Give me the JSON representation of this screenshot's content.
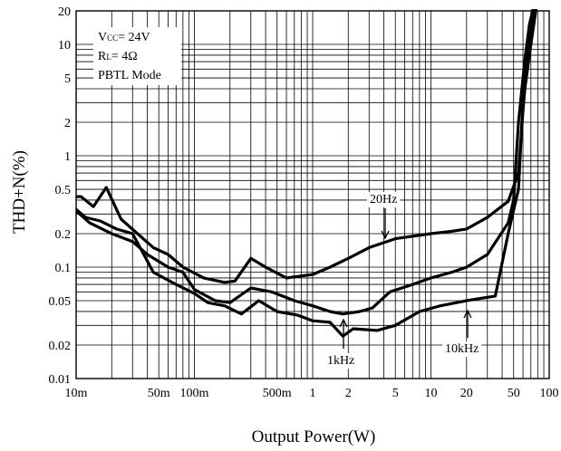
{
  "chart_data": {
    "type": "line",
    "title": "",
    "xlabel": "Output Power(W)",
    "ylabel": "THD+N(%)",
    "xscale": "log",
    "yscale": "log",
    "xlim": [
      0.01,
      100
    ],
    "ylim": [
      0.01,
      20
    ],
    "grid": true,
    "x_tick_values": [
      0.01,
      0.05,
      0.1,
      0.5,
      1,
      2,
      5,
      10,
      20,
      50,
      100
    ],
    "x_tick_labels": [
      "10m",
      "50m",
      "100m",
      "500m",
      "1",
      "2",
      "5",
      "10",
      "20",
      "50",
      "100"
    ],
    "y_tick_values": [
      0.01,
      0.02,
      0.05,
      0.1,
      0.2,
      0.5,
      1,
      2,
      5,
      10,
      20
    ],
    "y_tick_labels": [
      "0.01",
      "0.02",
      "0.05",
      "0.1",
      "0.2",
      "0.5",
      "1",
      "2",
      "5",
      "10",
      "20"
    ],
    "conditions": {
      "vcc_main": "V",
      "vcc_sub": "CC",
      "vcc_value": "= 24V",
      "rl_main": "R",
      "rl_sub": "L",
      "rl_value": "= 4Ω",
      "mode": "PBTL Mode"
    },
    "series": [
      {
        "name": "20Hz",
        "points": [
          [
            0.01,
            0.43
          ],
          [
            0.011,
            0.43
          ],
          [
            0.014,
            0.35
          ],
          [
            0.018,
            0.52
          ],
          [
            0.024,
            0.27
          ],
          [
            0.033,
            0.2
          ],
          [
            0.045,
            0.15
          ],
          [
            0.06,
            0.13
          ],
          [
            0.08,
            0.1
          ],
          [
            0.12,
            0.08
          ],
          [
            0.18,
            0.073
          ],
          [
            0.22,
            0.075
          ],
          [
            0.3,
            0.12
          ],
          [
            0.4,
            0.1
          ],
          [
            0.6,
            0.08
          ],
          [
            1.0,
            0.086
          ],
          [
            1.4,
            0.1
          ],
          [
            2.0,
            0.12
          ],
          [
            3.0,
            0.15
          ],
          [
            5.0,
            0.18
          ],
          [
            10,
            0.2
          ],
          [
            15,
            0.21
          ],
          [
            20,
            0.22
          ],
          [
            30,
            0.28
          ],
          [
            45,
            0.39
          ],
          [
            55,
            0.7
          ],
          [
            60,
            2.5
          ],
          [
            65,
            7
          ],
          [
            70,
            15
          ],
          [
            75,
            22
          ]
        ]
      },
      {
        "name": "1kHz",
        "points": [
          [
            0.01,
            0.33
          ],
          [
            0.012,
            0.28
          ],
          [
            0.016,
            0.26
          ],
          [
            0.022,
            0.22
          ],
          [
            0.03,
            0.2
          ],
          [
            0.045,
            0.09
          ],
          [
            0.07,
            0.07
          ],
          [
            0.1,
            0.058
          ],
          [
            0.13,
            0.048
          ],
          [
            0.18,
            0.045
          ],
          [
            0.25,
            0.038
          ],
          [
            0.35,
            0.05
          ],
          [
            0.5,
            0.04
          ],
          [
            0.75,
            0.037
          ],
          [
            1.0,
            0.033
          ],
          [
            1.4,
            0.032
          ],
          [
            1.8,
            0.024
          ],
          [
            2.2,
            0.028
          ],
          [
            3.5,
            0.027
          ],
          [
            5,
            0.03
          ],
          [
            8,
            0.04
          ],
          [
            12,
            0.045
          ],
          [
            20,
            0.05
          ],
          [
            25,
            0.052
          ],
          [
            35,
            0.055
          ],
          [
            45,
            0.2
          ],
          [
            55,
            0.5
          ],
          [
            60,
            3
          ],
          [
            70,
            10
          ],
          [
            78,
            22
          ]
        ]
      },
      {
        "name": "10kHz",
        "points": [
          [
            0.01,
            0.32
          ],
          [
            0.013,
            0.25
          ],
          [
            0.02,
            0.2
          ],
          [
            0.03,
            0.17
          ],
          [
            0.04,
            0.13
          ],
          [
            0.06,
            0.1
          ],
          [
            0.08,
            0.09
          ],
          [
            0.1,
            0.063
          ],
          [
            0.15,
            0.05
          ],
          [
            0.2,
            0.048
          ],
          [
            0.3,
            0.065
          ],
          [
            0.45,
            0.06
          ],
          [
            0.7,
            0.05
          ],
          [
            1.0,
            0.045
          ],
          [
            1.4,
            0.04
          ],
          [
            1.8,
            0.038
          ],
          [
            2.5,
            0.04
          ],
          [
            3.2,
            0.043
          ],
          [
            4.5,
            0.06
          ],
          [
            7,
            0.07
          ],
          [
            10,
            0.08
          ],
          [
            15,
            0.09
          ],
          [
            20,
            0.1
          ],
          [
            30,
            0.13
          ],
          [
            45,
            0.25
          ],
          [
            50,
            0.4
          ],
          [
            55,
            2
          ],
          [
            62,
            7
          ],
          [
            68,
            15
          ],
          [
            74,
            22
          ]
        ]
      }
    ],
    "annotations": [
      {
        "text": "20Hz",
        "series": "20Hz"
      },
      {
        "text": "1kHz",
        "series": "1kHz"
      },
      {
        "text": "10kHz",
        "series": "10kHz"
      }
    ]
  }
}
